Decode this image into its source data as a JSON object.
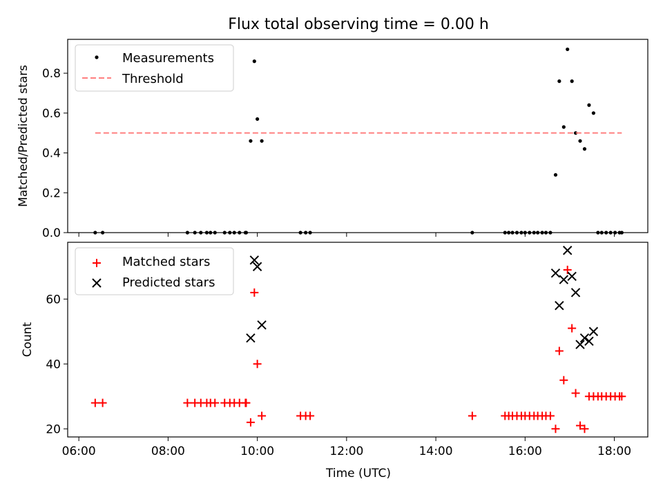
{
  "chart_data": {
    "title": "Flux total observing time = 0.00 h",
    "xlabel": "Time (UTC)",
    "xlim_hours": [
      5.75,
      18.75
    ],
    "x_ticks": [
      "06:00",
      "08:00",
      "10:00",
      "12:00",
      "14:00",
      "16:00",
      "18:00"
    ],
    "panels": [
      {
        "type": "scatter",
        "ylabel": "Matched/Predicted stars",
        "ylim": [
          0,
          0.97
        ],
        "y_ticks": [
          "0.0",
          "0.2",
          "0.4",
          "0.6",
          "0.8"
        ],
        "legend_position": "upper-left",
        "series": [
          {
            "name": "Measurements",
            "marker": "dot",
            "color": "#000000",
            "x": [
              "06:22",
              "06:32",
              "08:26",
              "08:36",
              "08:44",
              "08:52",
              "08:57",
              "09:03",
              "09:16",
              "09:23",
              "09:29",
              "09:36",
              "09:44",
              "09:45",
              "09:51",
              "09:56",
              "10:00",
              "10:06",
              "10:58",
              "11:05",
              "11:11",
              "14:49",
              "15:33",
              "15:38",
              "15:43",
              "15:49",
              "15:55",
              "16:00",
              "16:06",
              "16:12",
              "16:17",
              "16:23",
              "16:28",
              "16:34",
              "16:41",
              "16:46",
              "16:52",
              "16:57",
              "17:03",
              "17:08",
              "17:14",
              "17:20",
              "17:26",
              "17:32",
              "17:38",
              "17:43",
              "17:49",
              "17:55",
              "18:01",
              "18:07",
              "18:10"
            ],
            "y": [
              0,
              0,
              0,
              0,
              0,
              0,
              0,
              0,
              0,
              0,
              0,
              0,
              0,
              0,
              0.46,
              0.86,
              0.57,
              0.46,
              0,
              0,
              0,
              0,
              0,
              0,
              0,
              0,
              0,
              0,
              0,
              0,
              0,
              0,
              0,
              0,
              0.29,
              0.76,
              0.53,
              0.92,
              0.76,
              0.5,
              0.46,
              0.42,
              0.64,
              0.6,
              0,
              0,
              0,
              0,
              0,
              0,
              0
            ]
          },
          {
            "name": "Threshold",
            "line": "dashed",
            "color": "#ff7f7f",
            "x": [
              "06:22",
              "18:10"
            ],
            "y": [
              0.5,
              0.5
            ]
          }
        ]
      },
      {
        "type": "scatter",
        "ylabel": "Count",
        "ylim": [
          17.5,
          77.5
        ],
        "y_ticks": [
          "20",
          "40",
          "60"
        ],
        "legend_position": "upper-left",
        "series": [
          {
            "name": "Matched stars",
            "marker": "plus",
            "color": "#ff0000",
            "x": [
              "06:22",
              "06:32",
              "08:26",
              "08:36",
              "08:44",
              "08:52",
              "08:57",
              "09:03",
              "09:16",
              "09:23",
              "09:29",
              "09:36",
              "09:44",
              "09:45",
              "09:51",
              "09:56",
              "10:00",
              "10:06",
              "10:58",
              "11:05",
              "11:11",
              "14:49",
              "15:33",
              "15:38",
              "15:43",
              "15:49",
              "15:55",
              "16:00",
              "16:06",
              "16:12",
              "16:17",
              "16:23",
              "16:28",
              "16:34",
              "16:41",
              "16:46",
              "16:52",
              "16:57",
              "17:03",
              "17:08",
              "17:14",
              "17:20",
              "17:26",
              "17:32",
              "17:38",
              "17:43",
              "17:49",
              "17:55",
              "18:01",
              "18:07",
              "18:10"
            ],
            "y": [
              28,
              28,
              28,
              28,
              28,
              28,
              28,
              28,
              28,
              28,
              28,
              28,
              28,
              28,
              22,
              62,
              40,
              24,
              24,
              24,
              24,
              24,
              24,
              24,
              24,
              24,
              24,
              24,
              24,
              24,
              24,
              24,
              24,
              24,
              20,
              44,
              35,
              69,
              51,
              31,
              21,
              20,
              30,
              30,
              30,
              30,
              30,
              30,
              30,
              30,
              30
            ]
          },
          {
            "name": "Predicted stars",
            "marker": "x",
            "color": "#000000",
            "x": [
              "09:51",
              "09:56",
              "10:00",
              "10:06",
              "16:41",
              "16:46",
              "16:52",
              "16:57",
              "17:03",
              "17:08",
              "17:14",
              "17:20",
              "17:26",
              "17:32"
            ],
            "y": [
              48,
              72,
              70,
              52,
              68,
              58,
              66,
              75,
              67,
              62,
              46,
              48,
              47,
              50
            ]
          }
        ]
      }
    ]
  }
}
